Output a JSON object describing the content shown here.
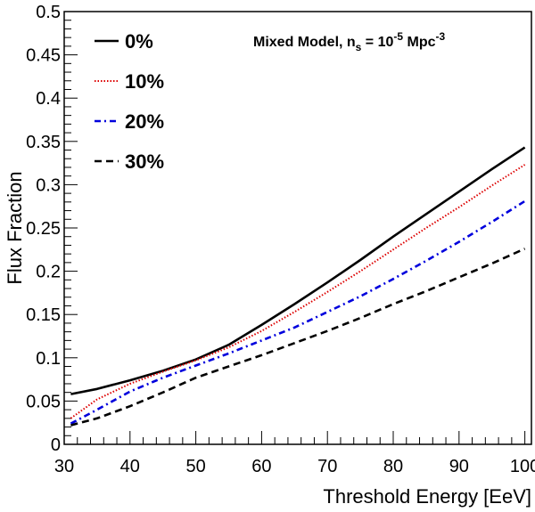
{
  "chart_data": {
    "type": "line",
    "title": "",
    "xlabel": "Threshold Energy [EeV]",
    "ylabel": "Flux Fraction",
    "xlim": [
      30,
      101
    ],
    "ylim": [
      0,
      0.5
    ],
    "xticks": [
      "30",
      "40",
      "50",
      "60",
      "70",
      "80",
      "90",
      "100"
    ],
    "yticks": [
      "0",
      "0.05",
      "0.1",
      "0.15",
      "0.2",
      "0.25",
      "0.3",
      "0.35",
      "0.4",
      "0.45",
      "0.5"
    ],
    "grid": false,
    "legend_position": "top-left",
    "annotation": {
      "prefix": "Mixed Model, n",
      "sub": "s",
      "middle": " = 10",
      "sup1": "-5",
      "unit": " Mpc",
      "sup2": "-3"
    },
    "series": [
      {
        "name": "0%",
        "color": "#000000",
        "dash": "solid",
        "x": [
          31,
          35,
          40,
          45,
          50,
          55,
          60,
          65,
          70,
          75,
          80,
          85,
          90,
          95,
          100
        ],
        "y": [
          0.058,
          0.064,
          0.074,
          0.085,
          0.098,
          0.115,
          0.138,
          0.162,
          0.187,
          0.213,
          0.24,
          0.266,
          0.292,
          0.318,
          0.343
        ]
      },
      {
        "name": "10%",
        "color": "#dd0000",
        "dash": "dotted",
        "x": [
          31,
          35,
          40,
          45,
          50,
          55,
          60,
          65,
          70,
          75,
          80,
          85,
          90,
          95,
          100
        ],
        "y": [
          0.03,
          0.052,
          0.07,
          0.084,
          0.097,
          0.112,
          0.131,
          0.153,
          0.176,
          0.2,
          0.225,
          0.25,
          0.274,
          0.299,
          0.323
        ]
      },
      {
        "name": "20%",
        "color": "#0000dd",
        "dash": "dashdot",
        "x": [
          31,
          35,
          40,
          45,
          50,
          55,
          60,
          65,
          70,
          75,
          80,
          85,
          90,
          95,
          100
        ],
        "y": [
          0.024,
          0.04,
          0.061,
          0.077,
          0.091,
          0.105,
          0.12,
          0.135,
          0.153,
          0.171,
          0.191,
          0.212,
          0.234,
          0.257,
          0.281
        ]
      },
      {
        "name": "30%",
        "color": "#000000",
        "dash": "dashed",
        "x": [
          31,
          35,
          40,
          45,
          50,
          55,
          60,
          65,
          70,
          75,
          80,
          85,
          90,
          95,
          100
        ],
        "y": [
          0.022,
          0.03,
          0.044,
          0.06,
          0.077,
          0.09,
          0.103,
          0.117,
          0.131,
          0.146,
          0.162,
          0.177,
          0.193,
          0.209,
          0.226
        ]
      }
    ]
  }
}
